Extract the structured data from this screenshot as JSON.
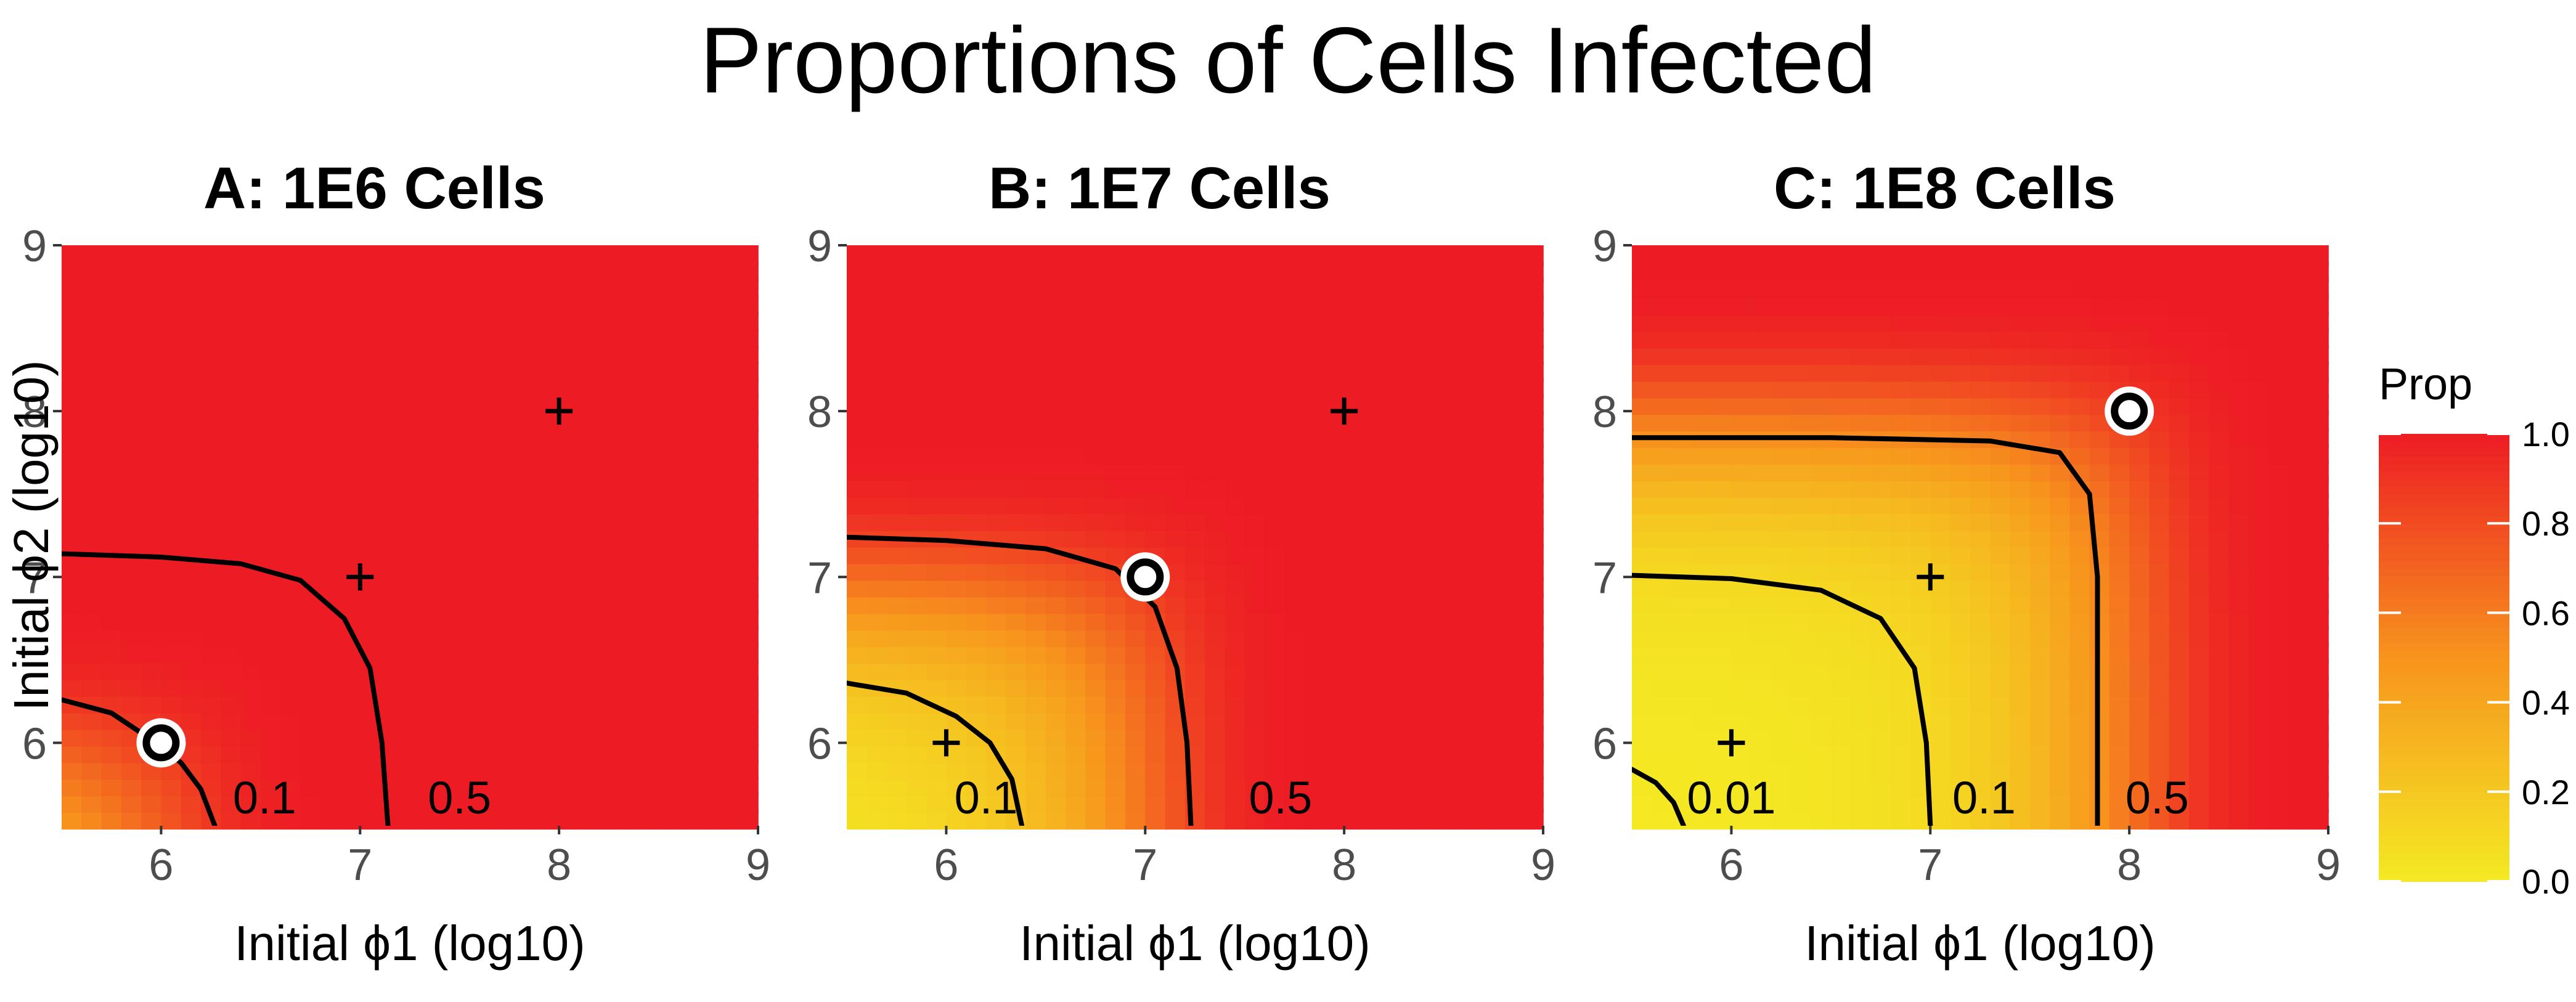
{
  "title": "Proportions of Cells Infected",
  "chart_data": [
    {
      "type": "heatmap",
      "title": "A: 1E6 Cells",
      "xlabel": "Initial ϕ1 (log10)",
      "ylabel": "Initial ϕ2 (log10)",
      "xlim": [
        5.5,
        9
      ],
      "ylim": [
        5.5,
        9
      ],
      "xticks": [
        "6",
        "7",
        "8",
        "9"
      ],
      "yticks": [
        "6",
        "7",
        "8",
        "9"
      ],
      "cells_log10": 6,
      "contours": [
        {
          "level": 0.1,
          "label": "0.1",
          "label_at": [
            6.52,
            5.67
          ],
          "points": [
            [
              5.5,
              6.26
            ],
            [
              5.75,
              6.18
            ],
            [
              5.95,
              6.02
            ],
            [
              6.1,
              5.88
            ],
            [
              6.2,
              5.72
            ],
            [
              6.27,
              5.5
            ]
          ]
        },
        {
          "level": 0.5,
          "label": "0.5",
          "label_at": [
            7.5,
            5.67
          ],
          "points": [
            [
              5.5,
              7.14
            ],
            [
              6.0,
              7.12
            ],
            [
              6.4,
              7.08
            ],
            [
              6.7,
              6.98
            ],
            [
              6.92,
              6.75
            ],
            [
              7.05,
              6.45
            ],
            [
              7.11,
              6.0
            ],
            [
              7.14,
              5.5
            ]
          ]
        }
      ],
      "circle_points": [
        [
          6,
          6
        ]
      ],
      "plus_points": [
        [
          7,
          7
        ],
        [
          8,
          8
        ]
      ]
    },
    {
      "type": "heatmap",
      "title": "B: 1E7 Cells",
      "xlabel": "Initial ϕ1 (log10)",
      "ylabel": "",
      "xlim": [
        5.5,
        9
      ],
      "ylim": [
        5.5,
        9
      ],
      "xticks": [
        "6",
        "7",
        "8",
        "9"
      ],
      "yticks": [
        "6",
        "7",
        "8",
        "9"
      ],
      "cells_log10": 7,
      "contours": [
        {
          "level": 0.1,
          "label": "0.1",
          "label_at": [
            6.2,
            5.67
          ],
          "points": [
            [
              5.5,
              6.36
            ],
            [
              5.8,
              6.3
            ],
            [
              6.05,
              6.16
            ],
            [
              6.22,
              6.0
            ],
            [
              6.33,
              5.78
            ],
            [
              6.38,
              5.5
            ]
          ]
        },
        {
          "level": 0.5,
          "label": "0.5",
          "label_at": [
            7.68,
            5.67
          ],
          "points": [
            [
              5.5,
              7.24
            ],
            [
              6.0,
              7.22
            ],
            [
              6.5,
              7.17
            ],
            [
              6.85,
              7.05
            ],
            [
              7.05,
              6.82
            ],
            [
              7.16,
              6.45
            ],
            [
              7.21,
              6.0
            ],
            [
              7.23,
              5.5
            ]
          ]
        }
      ],
      "circle_points": [
        [
          7,
          7
        ]
      ],
      "plus_points": [
        [
          6,
          6
        ],
        [
          8,
          8
        ]
      ]
    },
    {
      "type": "heatmap",
      "title": "C: 1E8 Cells",
      "xlabel": "Initial ϕ1 (log10)",
      "ylabel": "",
      "xlim": [
        5.5,
        9
      ],
      "ylim": [
        5.5,
        9
      ],
      "xticks": [
        "6",
        "7",
        "8",
        "9"
      ],
      "yticks": [
        "6",
        "7",
        "8",
        "9"
      ],
      "cells_log10": 8,
      "contours": [
        {
          "level": 0.01,
          "label": "0.01",
          "label_at": [
            6.0,
            5.67
          ],
          "points": [
            [
              5.5,
              5.84
            ],
            [
              5.62,
              5.76
            ],
            [
              5.71,
              5.64
            ],
            [
              5.76,
              5.5
            ]
          ]
        },
        {
          "level": 0.1,
          "label": "0.1",
          "label_at": [
            7.27,
            5.67
          ],
          "points": [
            [
              5.5,
              7.01
            ],
            [
              6.0,
              6.99
            ],
            [
              6.45,
              6.92
            ],
            [
              6.75,
              6.75
            ],
            [
              6.92,
              6.45
            ],
            [
              6.98,
              6.0
            ],
            [
              7.0,
              5.5
            ]
          ]
        },
        {
          "level": 0.5,
          "label": "0.5",
          "label_at": [
            8.14,
            5.67
          ],
          "points": [
            [
              5.5,
              7.84
            ],
            [
              6.5,
              7.84
            ],
            [
              7.3,
              7.82
            ],
            [
              7.65,
              7.75
            ],
            [
              7.8,
              7.5
            ],
            [
              7.84,
              7.0
            ],
            [
              7.84,
              6.0
            ],
            [
              7.84,
              5.5
            ]
          ]
        }
      ],
      "circle_points": [
        [
          8,
          8
        ]
      ],
      "plus_points": [
        [
          6,
          6
        ],
        [
          7,
          7
        ]
      ]
    }
  ],
  "legend": {
    "title": "Prop",
    "ticks": [
      "0.0",
      "0.2",
      "0.4",
      "0.6",
      "0.8",
      "1.0"
    ],
    "range": [
      0,
      1
    ],
    "low_color": "#f4ea23",
    "mid_color": "#f7941d",
    "high_color": "#ed1c24"
  },
  "colors": {
    "panel_background": "#ebebeb",
    "gridline": "#ffffff",
    "contour": "#000000",
    "marker": "#000000"
  }
}
